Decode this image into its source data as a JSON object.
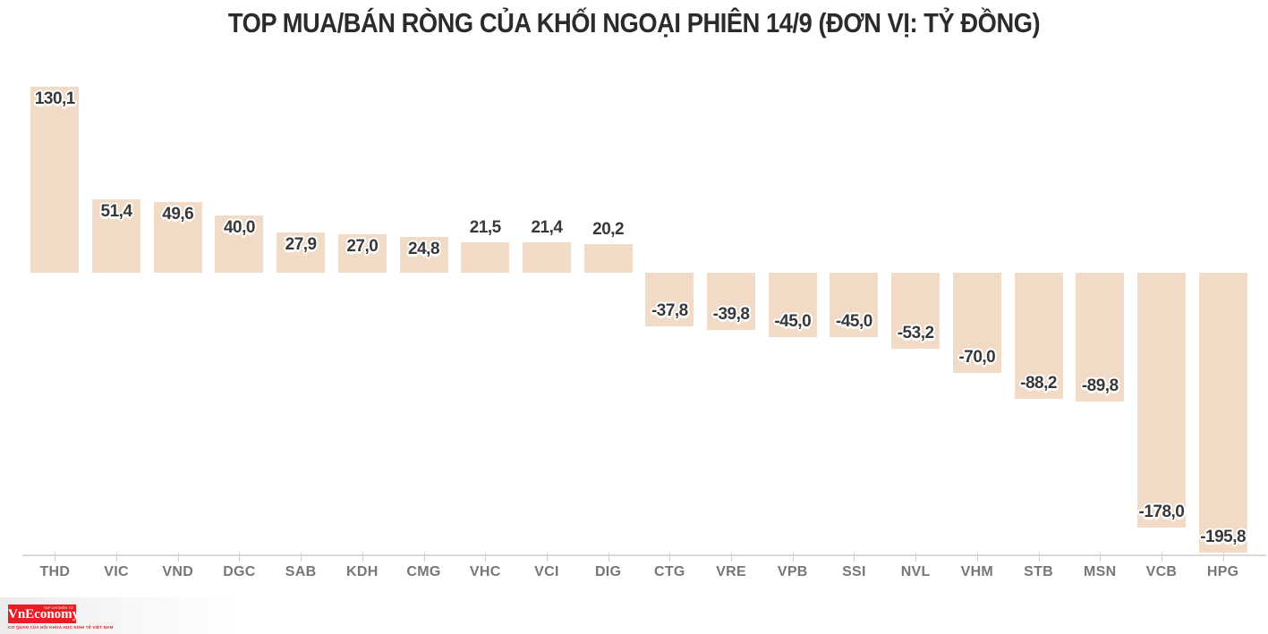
{
  "chart_data": {
    "type": "bar",
    "title": "TOP MUA/BÁN RÒNG CỦA KHỐI NGOẠI PHIÊN 14/9 (ĐƠN VỊ: TỶ ĐỒNG)",
    "unit": "tỷ đồng",
    "categories": [
      "THD",
      "VIC",
      "VND",
      "DGC",
      "SAB",
      "KDH",
      "CMG",
      "VHC",
      "VCI",
      "DIG",
      "CTG",
      "VRE",
      "VPB",
      "SSI",
      "NVL",
      "VHM",
      "STB",
      "MSN",
      "VCB",
      "HPG"
    ],
    "values": [
      130.1,
      51.4,
      49.6,
      40.0,
      27.9,
      27.0,
      24.8,
      21.5,
      21.4,
      20.2,
      -37.8,
      -39.8,
      -45.0,
      -45.0,
      -53.2,
      -70.0,
      -88.2,
      -89.8,
      -178.0,
      -195.8
    ],
    "value_labels": [
      "130,1",
      "51,4",
      "49,6",
      "40,0",
      "27,9",
      "27,0",
      "24,8",
      "21,5",
      "21,4",
      "20,2",
      "-37,8",
      "-39,8",
      "-45,0",
      "-45,0",
      "-53,2",
      "-70,0",
      "-88,2",
      "-89,8",
      "-178,0",
      "-195,8"
    ],
    "xlabel": "",
    "ylabel": "",
    "ylim": [
      -210,
      140
    ],
    "grid": false,
    "legend": false,
    "colors": {
      "bar": "#f2dbc6",
      "value_label": "#383838",
      "axis_label": "#767676",
      "axis_line": "#dadada",
      "title": "#2b2b2b",
      "background": "#ffffff"
    }
  },
  "branding": {
    "logo_text": "VnEconomy",
    "logo_top_text": "TẠP CHÍ ĐIỆN TỬ",
    "logo_tagline": "CƠ QUAN CỦA HỘI KHOA HỌC KINH TẾ VIỆT NAM",
    "logo_bg": "#ec1c24",
    "logo_text_color": "#ffffff"
  }
}
